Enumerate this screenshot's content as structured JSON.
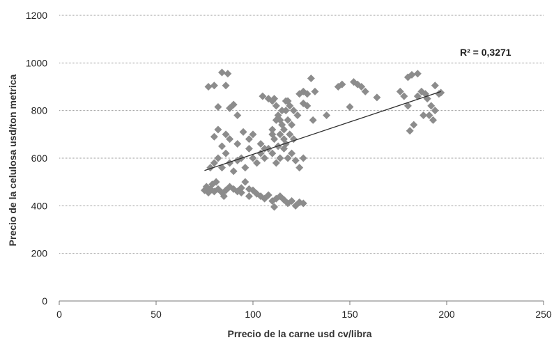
{
  "chart_data": {
    "type": "scatter",
    "title": "",
    "xlabel": "Prrecio de la carne usd cv/libra",
    "ylabel": "Precio de la celulosa usd/ton metrica",
    "xlim": [
      0,
      250
    ],
    "ylim": [
      0,
      1200
    ],
    "xticks": [
      "0",
      "50",
      "100",
      "150",
      "200",
      "250"
    ],
    "yticks": [
      "0",
      "200",
      "400",
      "600",
      "800",
      "1000",
      "1200"
    ],
    "grid": "horizontal dotted",
    "legend": "none",
    "annotation": "R² = 0,3271",
    "marker": "diamond",
    "marker_color": "#8c8c8c",
    "trendline": {
      "type": "linear",
      "from": [
        75,
        548
      ],
      "to": [
        197,
        880
      ],
      "color": "#2f2f2f"
    },
    "series": [
      {
        "points": [
          [
            75,
            465
          ],
          [
            76,
            480
          ],
          [
            77,
            455
          ],
          [
            78,
            470
          ],
          [
            79,
            490
          ],
          [
            80,
            460
          ],
          [
            81,
            500
          ],
          [
            82,
            470
          ],
          [
            84,
            455
          ],
          [
            86,
            465
          ],
          [
            88,
            480
          ],
          [
            90,
            470
          ],
          [
            92,
            460
          ],
          [
            94,
            475
          ],
          [
            96,
            500
          ],
          [
            98,
            470
          ],
          [
            100,
            465
          ],
          [
            102,
            450
          ],
          [
            104,
            440
          ],
          [
            106,
            430
          ],
          [
            108,
            445
          ],
          [
            110,
            420
          ],
          [
            112,
            430
          ],
          [
            114,
            440
          ],
          [
            116,
            425
          ],
          [
            118,
            410
          ],
          [
            120,
            420
          ],
          [
            122,
            400
          ],
          [
            124,
            415
          ],
          [
            126,
            410
          ],
          [
            111,
            395
          ],
          [
            98,
            440
          ],
          [
            94,
            455
          ],
          [
            85,
            440
          ],
          [
            77,
            900
          ],
          [
            80,
            905
          ],
          [
            84,
            960
          ],
          [
            87,
            955
          ],
          [
            86,
            905
          ],
          [
            88,
            810
          ],
          [
            82,
            815
          ],
          [
            92,
            780
          ],
          [
            90,
            825
          ],
          [
            78,
            560
          ],
          [
            80,
            580
          ],
          [
            82,
            600
          ],
          [
            84,
            560
          ],
          [
            86,
            620
          ],
          [
            88,
            580
          ],
          [
            90,
            545
          ],
          [
            92,
            590
          ],
          [
            94,
            600
          ],
          [
            96,
            560
          ],
          [
            98,
            640
          ],
          [
            100,
            600
          ],
          [
            102,
            580
          ],
          [
            104,
            620
          ],
          [
            106,
            600
          ],
          [
            108,
            640
          ],
          [
            110,
            620
          ],
          [
            112,
            580
          ],
          [
            114,
            600
          ],
          [
            116,
            640
          ],
          [
            118,
            600
          ],
          [
            120,
            620
          ],
          [
            122,
            590
          ],
          [
            124,
            560
          ],
          [
            126,
            600
          ],
          [
            80,
            690
          ],
          [
            82,
            720
          ],
          [
            84,
            650
          ],
          [
            86,
            700
          ],
          [
            88,
            680
          ],
          [
            92,
            660
          ],
          [
            95,
            710
          ],
          [
            98,
            680
          ],
          [
            100,
            700
          ],
          [
            104,
            660
          ],
          [
            106,
            640
          ],
          [
            110,
            700
          ],
          [
            111,
            850
          ],
          [
            112,
            820
          ],
          [
            113,
            780
          ],
          [
            114,
            760
          ],
          [
            115,
            740
          ],
          [
            116,
            720
          ],
          [
            117,
            800
          ],
          [
            118,
            840
          ],
          [
            112,
            760
          ],
          [
            114,
            700
          ],
          [
            116,
            680
          ],
          [
            118,
            760
          ],
          [
            120,
            740
          ],
          [
            110,
            720
          ],
          [
            113,
            650
          ],
          [
            117,
            660
          ],
          [
            119,
            700
          ],
          [
            121,
            680
          ],
          [
            111,
            680
          ],
          [
            115,
            800
          ],
          [
            117,
            840
          ],
          [
            119,
            820
          ],
          [
            121,
            800
          ],
          [
            123,
            780
          ],
          [
            105,
            860
          ],
          [
            108,
            850
          ],
          [
            110,
            840
          ],
          [
            124,
            870
          ],
          [
            126,
            880
          ],
          [
            128,
            870
          ],
          [
            130,
            935
          ],
          [
            132,
            880
          ],
          [
            126,
            830
          ],
          [
            128,
            820
          ],
          [
            131,
            760
          ],
          [
            138,
            780
          ],
          [
            144,
            900
          ],
          [
            146,
            910
          ],
          [
            150,
            815
          ],
          [
            152,
            920
          ],
          [
            154,
            910
          ],
          [
            156,
            900
          ],
          [
            158,
            880
          ],
          [
            164,
            855
          ],
          [
            176,
            880
          ],
          [
            178,
            860
          ],
          [
            180,
            940
          ],
          [
            182,
            950
          ],
          [
            185,
            955
          ],
          [
            187,
            880
          ],
          [
            189,
            870
          ],
          [
            190,
            850
          ],
          [
            192,
            820
          ],
          [
            194,
            800
          ],
          [
            196,
            870
          ],
          [
            185,
            860
          ],
          [
            180,
            820
          ],
          [
            183,
            740
          ],
          [
            181,
            715
          ],
          [
            188,
            780
          ],
          [
            191,
            780
          ],
          [
            193,
            760
          ],
          [
            194,
            905
          ],
          [
            197,
            875
          ]
        ]
      }
    ]
  }
}
